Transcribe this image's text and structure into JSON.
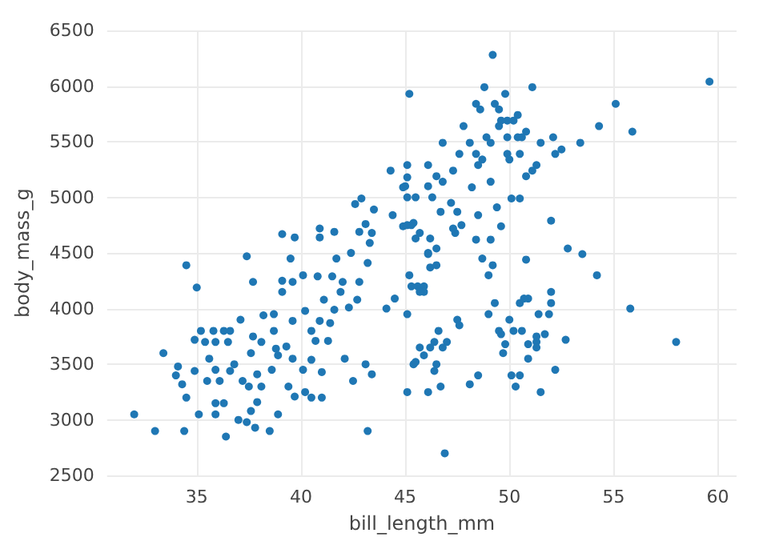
{
  "chart_data": {
    "type": "scatter",
    "xlabel": "bill_length_mm",
    "ylabel": "body_mass_g",
    "xlim": [
      30.7,
      60.9
    ],
    "ylim": [
      2500,
      6500
    ],
    "xticks": [
      35,
      40,
      45,
      50,
      55,
      60
    ],
    "yticks": [
      2500,
      3000,
      3500,
      4000,
      4500,
      5000,
      5500,
      6000,
      6500
    ],
    "grid": true,
    "marker": "circle",
    "series": [
      {
        "color": "#1f77b4",
        "x": [
          32.0,
          33.0,
          33.4,
          34.5,
          35.0,
          34.4,
          34.5,
          34.0,
          34.3,
          34.1,
          34.9,
          35.1,
          34.9,
          35.2,
          35.4,
          35.5,
          35.6,
          35.8,
          35.9,
          35.9,
          35.9,
          36.1,
          36.3,
          36.3,
          36.4,
          35.9,
          36.6,
          36.6,
          36.5,
          36.8,
          37.1,
          37.0,
          37.4,
          37.4,
          37.2,
          37.5,
          37.6,
          37.7,
          37.7,
          37.6,
          37.8,
          37.9,
          37.9,
          38.1,
          38.2,
          38.1,
          38.5,
          38.6,
          38.7,
          38.8,
          38.7,
          38.9,
          38.9,
          39.1,
          39.1,
          39.4,
          39.5,
          39.6,
          39.6,
          39.7,
          39.6,
          39.3,
          40.1,
          40.1,
          40.2,
          40.2,
          40.5,
          40.5,
          40.7,
          40.5,
          40.8,
          40.9,
          41.0,
          41.0,
          41.1,
          41.3,
          41.4,
          41.5,
          41.6,
          41.7,
          41.9,
          42.0,
          42.1,
          42.3,
          42.4,
          42.5,
          42.7,
          42.8,
          43.1,
          43.2,
          43.4,
          43.2,
          44.1,
          44.5,
          45.1,
          45.1,
          45.2,
          44.3,
          45.1,
          45.1,
          44.9,
          45.1,
          45.5,
          42.6,
          42.9,
          43.5,
          44.4,
          44.9,
          45.3,
          45.5,
          42.8,
          43.1,
          43.4,
          43.3,
          41.6,
          40.9,
          40.9,
          39.1,
          39.7,
          46.1,
          46.1,
          46.1,
          49.2,
          48.8,
          49.8,
          51.1,
          48.4,
          49.3,
          48.6,
          49.5,
          50.4,
          49.6,
          49.9,
          50.2,
          49.5,
          47.8,
          50.8,
          50.4,
          50.6,
          49.9,
          48.9,
          49.1,
          48.1,
          46.8,
          51.5,
          52.1,
          53.4,
          54.3,
          55.1,
          55.9,
          59.6,
          52.5,
          52.2,
          51.3,
          51.1,
          50.8,
          50.5,
          49.9,
          50.0,
          48.4,
          48.7,
          48.5,
          47.6,
          47.3,
          48.2,
          49.1,
          50.1,
          50.5,
          49.4,
          48.5,
          49.6,
          49.1,
          48.4,
          47.7,
          47.4,
          47.3,
          47.5,
          47.2,
          46.7,
          46.3,
          46.8,
          46.5,
          45.0,
          45.1,
          45.4,
          45.7,
          46.2,
          46.5,
          46.1,
          52.0,
          52.8,
          53.5,
          48.7,
          50.8,
          46.9,
          46.1,
          46.7,
          46.4,
          46.5,
          45.4,
          45.5,
          45.9,
          45.7,
          46.2,
          46.4,
          46.8,
          47.0,
          46.6,
          47.5,
          47.6,
          48.1,
          48.5,
          49.0,
          49.5,
          49.6,
          49.8,
          49.7,
          50.0,
          50.2,
          50.6,
          50.1,
          50.5,
          50.3,
          50.9,
          50.9,
          51.3,
          51.3,
          51.3,
          51.7,
          51.4,
          51.9,
          51.5,
          52.2,
          52.7,
          52.0,
          52.0,
          49.3,
          50.5,
          50.7,
          50.9,
          49.0,
          49.2,
          54.2,
          55.8,
          58.0,
          45.2,
          45.3,
          45.6,
          45.9,
          45.9,
          45.7,
          46.2,
          46.5
        ],
        "values": [
          3050,
          2900,
          3600,
          4390,
          4190,
          2900,
          3200,
          3400,
          3320,
          3480,
          3440,
          3050,
          3720,
          3800,
          3700,
          3350,
          3550,
          3800,
          3700,
          3050,
          3150,
          3350,
          3800,
          3150,
          2850,
          3450,
          3440,
          3800,
          3700,
          3500,
          3900,
          3000,
          4470,
          2980,
          3350,
          3300,
          3600,
          3750,
          4240,
          3080,
          2930,
          3160,
          3410,
          3700,
          3940,
          3300,
          2900,
          3450,
          3800,
          3640,
          3950,
          3050,
          3580,
          4250,
          4150,
          3300,
          4450,
          3890,
          4240,
          3210,
          3550,
          3660,
          4300,
          3450,
          3250,
          3980,
          3540,
          3800,
          3710,
          3200,
          4290,
          3890,
          3200,
          3430,
          4080,
          3710,
          3870,
          4290,
          3990,
          4450,
          4150,
          4240,
          3550,
          4010,
          4500,
          3350,
          4080,
          4240,
          3500,
          2900,
          3410,
          4410,
          4000,
          4090,
          3950,
          3250,
          5930,
          5240,
          5290,
          5180,
          5090,
          5000,
          5000,
          4940,
          4990,
          4890,
          4840,
          4740,
          4750,
          4630,
          4690,
          4760,
          4680,
          4590,
          4690,
          4720,
          4640,
          4670,
          4640,
          4490,
          5100,
          5290,
          6280,
          5990,
          5930,
          5990,
          5840,
          5840,
          5790,
          5790,
          5740,
          5690,
          5690,
          5690,
          5640,
          5640,
          5590,
          5540,
          5540,
          5540,
          5540,
          5490,
          5490,
          5490,
          5490,
          5540,
          5490,
          5640,
          5840,
          5590,
          6040,
          5430,
          5390,
          5290,
          5240,
          5190,
          5390,
          5390,
          5340,
          5390,
          5340,
          5290,
          5390,
          5240,
          5090,
          5140,
          4990,
          4990,
          4910,
          4840,
          4740,
          4620,
          4620,
          4750,
          4680,
          4720,
          4870,
          4950,
          4870,
          5000,
          5140,
          5190,
          5100,
          4750,
          4770,
          4680,
          4630,
          4540,
          4500,
          4790,
          4540,
          4490,
          4450,
          4440,
          2700,
          3250,
          3300,
          3440,
          3500,
          3500,
          3520,
          3580,
          3650,
          3650,
          3700,
          3650,
          3700,
          3800,
          3900,
          3850,
          3320,
          3400,
          3950,
          3800,
          3770,
          3680,
          3600,
          3900,
          3800,
          3800,
          3400,
          3400,
          3300,
          3680,
          3550,
          3700,
          3650,
          3750,
          3770,
          3950,
          3950,
          3250,
          3450,
          3720,
          4050,
          4150,
          4050,
          4050,
          4090,
          4090,
          4300,
          4390,
          4300,
          4000,
          3700,
          4300,
          4200,
          4200,
          4200,
          4150,
          4150,
          4370,
          4390
        ]
      }
    ]
  }
}
